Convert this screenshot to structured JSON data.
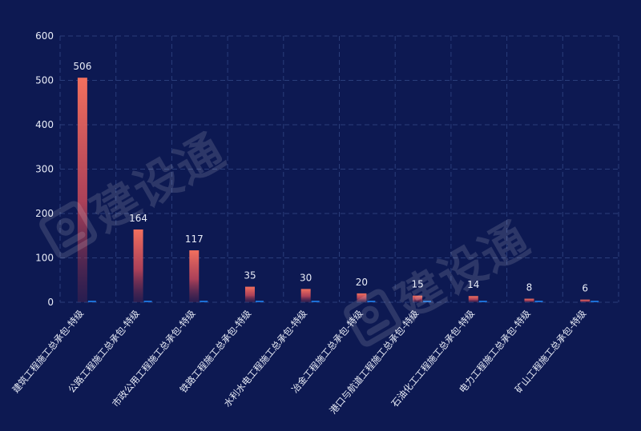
{
  "chart_data": {
    "type": "bar",
    "categories": [
      "建筑工程施工总承包-特级",
      "公路工程施工总承包-特级",
      "市政公用工程施工总承包-特级",
      "铁路工程施工总承包-特级",
      "水利水电工程施工总承包-特级",
      "冶金工程施工总承包-特级",
      "港口与航道工程施工总承包-特级",
      "石油化工工程施工总承包-特级",
      "电力工程施工总承包-特级",
      "矿山工程施工总承包-特级"
    ],
    "values": [
      506,
      164,
      117,
      35,
      30,
      20,
      15,
      14,
      8,
      6
    ],
    "ylim": [
      0,
      600
    ],
    "yticks": [
      0,
      100,
      200,
      300,
      400,
      500,
      600
    ],
    "grid": true,
    "colors": {
      "background": "#0d1952",
      "bar_top": "#f2705e",
      "bar_bottom": "#7a2a4a",
      "secondary_bar": "#1d6fd6",
      "grid": "#2a3d7a",
      "text": "#e8ecf7"
    }
  },
  "watermark": {
    "text": "建设通",
    "icon": "hard-hat-logo-icon"
  }
}
